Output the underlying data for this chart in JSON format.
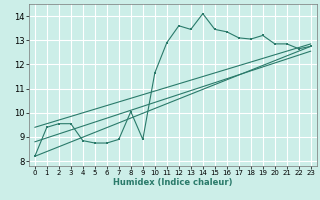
{
  "xlabel": "Humidex (Indice chaleur)",
  "bg_color": "#cceee8",
  "grid_color": "#ffffff",
  "line_color": "#2a7a6a",
  "xlim": [
    -0.5,
    23.5
  ],
  "ylim": [
    7.8,
    14.5
  ],
  "xticks": [
    0,
    1,
    2,
    3,
    4,
    5,
    6,
    7,
    8,
    9,
    10,
    11,
    12,
    13,
    14,
    15,
    16,
    17,
    18,
    19,
    20,
    21,
    22,
    23
  ],
  "yticks": [
    8,
    9,
    10,
    11,
    12,
    13,
    14
  ],
  "main_line": {
    "x": [
      0,
      1,
      2,
      3,
      4,
      5,
      6,
      7,
      8,
      9,
      10,
      11,
      12,
      13,
      14,
      15,
      16,
      17,
      18,
      19,
      20,
      21,
      22,
      23
    ],
    "y": [
      8.2,
      9.4,
      9.55,
      9.55,
      8.85,
      8.75,
      8.75,
      8.9,
      10.05,
      8.9,
      11.65,
      12.9,
      13.6,
      13.45,
      14.1,
      13.45,
      13.35,
      13.1,
      13.05,
      13.2,
      12.85,
      12.85,
      12.65,
      12.75
    ]
  },
  "trend_lines": [
    {
      "x": [
        0,
        23
      ],
      "y": [
        8.2,
        12.75
      ]
    },
    {
      "x": [
        0,
        23
      ],
      "y": [
        8.8,
        12.55
      ]
    },
    {
      "x": [
        0,
        23
      ],
      "y": [
        9.4,
        12.85
      ]
    }
  ]
}
